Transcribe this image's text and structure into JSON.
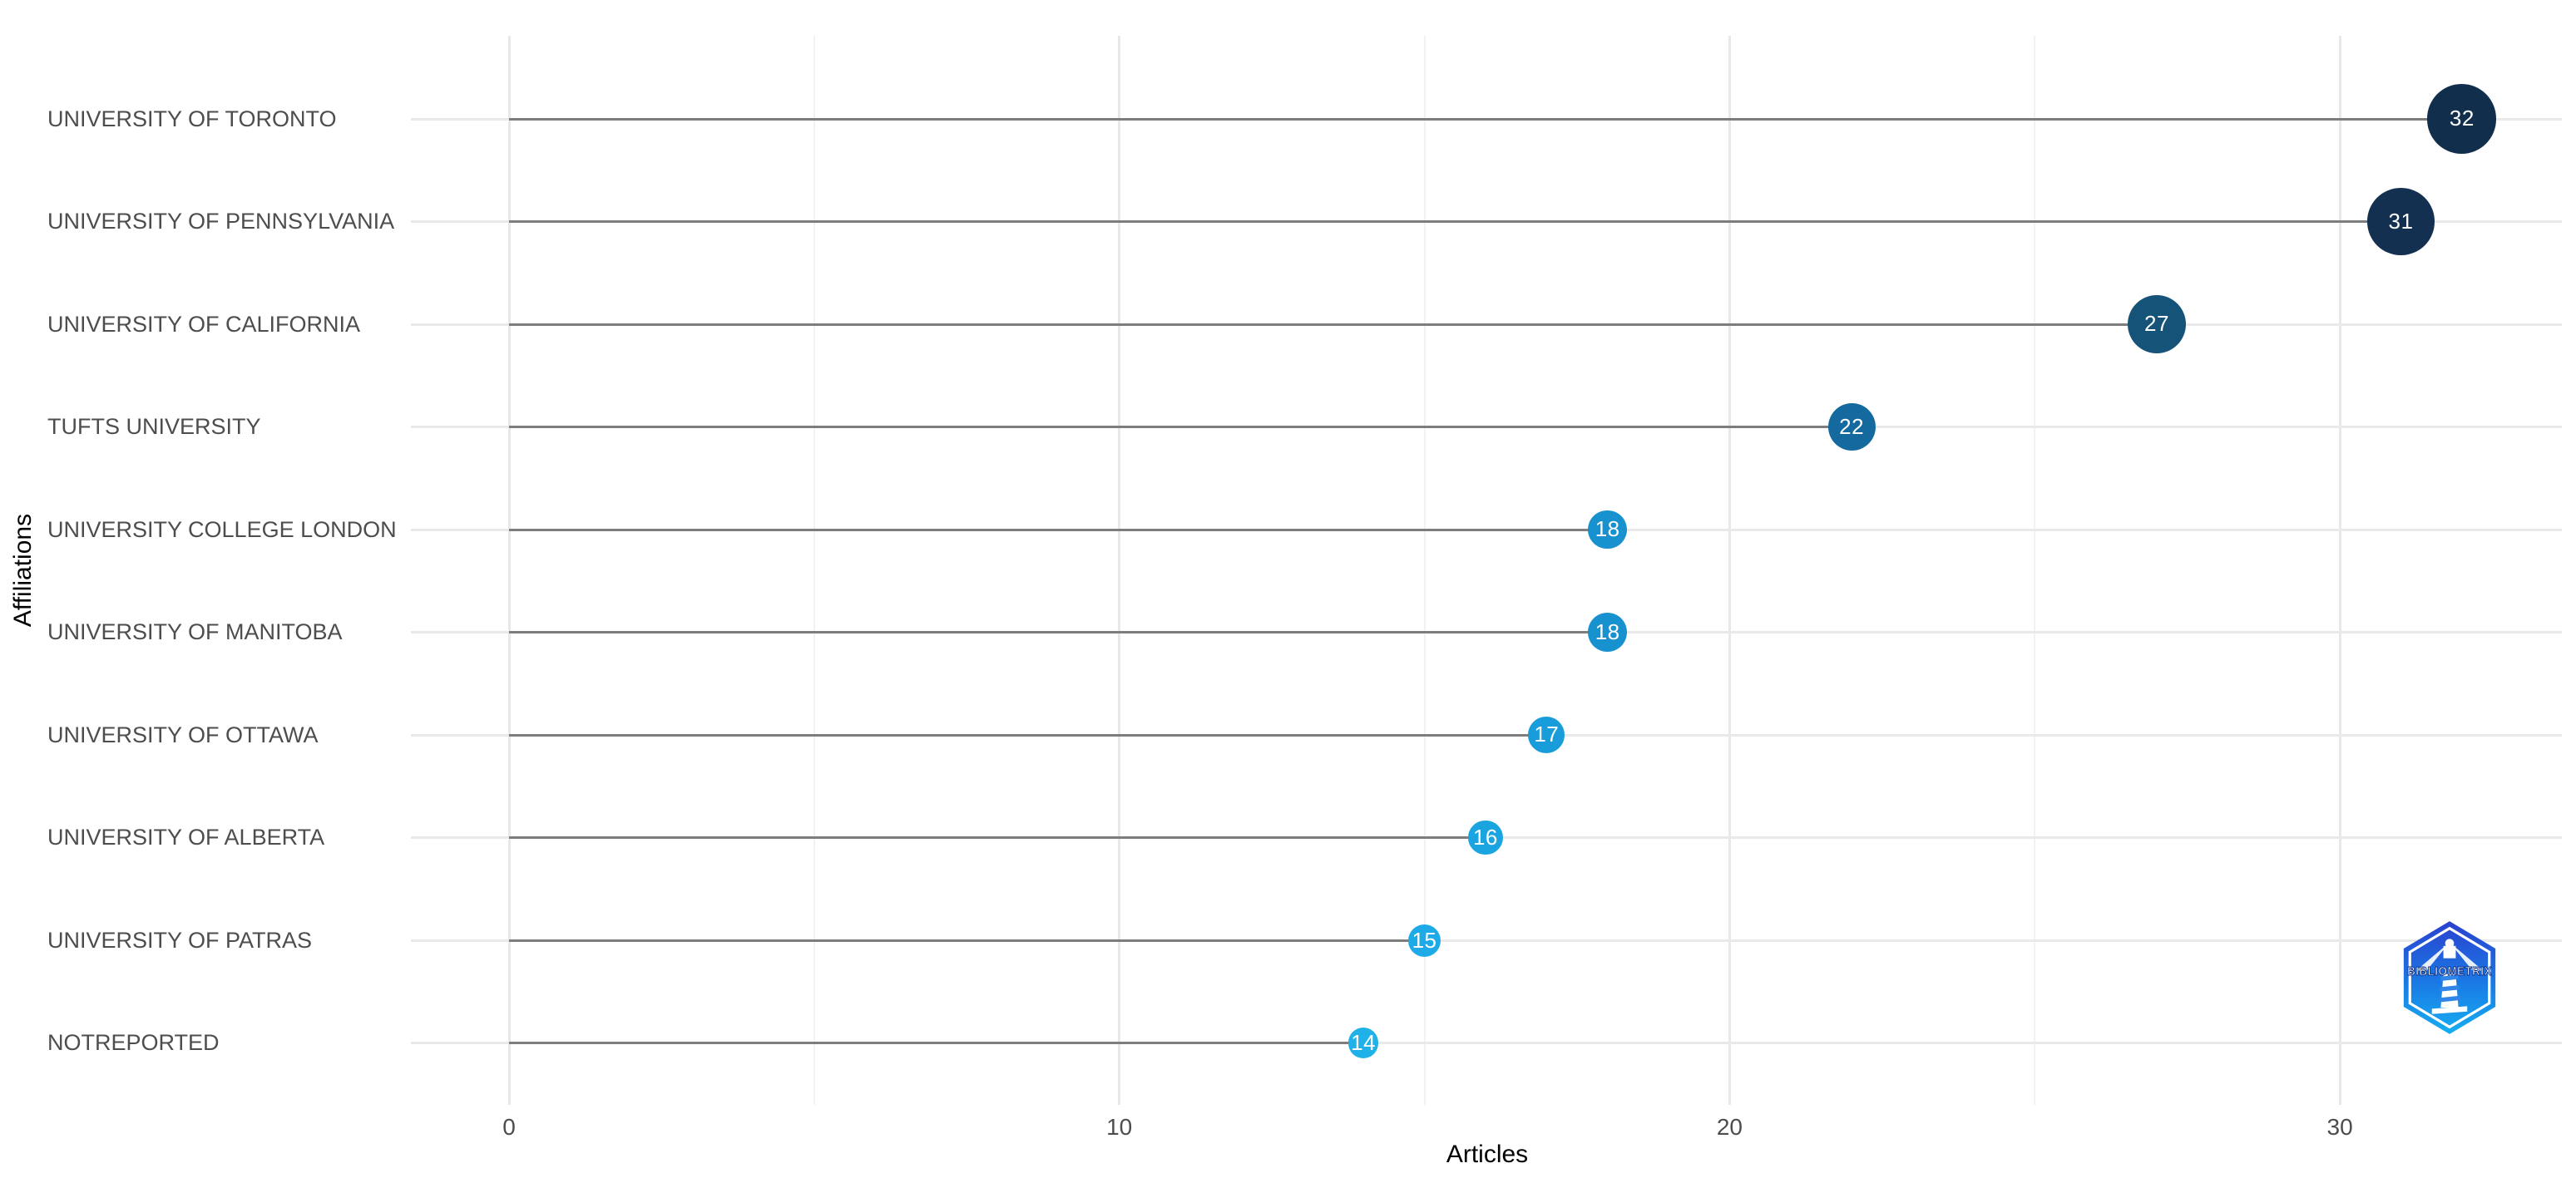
{
  "chart_data": {
    "type": "scatter",
    "variant": "lollipop",
    "orientation": "horizontal",
    "title": "",
    "xlabel": "Articles",
    "ylabel": "Affiliations",
    "categories": [
      "UNIVERSITY OF TORONTO",
      "UNIVERSITY OF PENNSYLVANIA",
      "UNIVERSITY OF CALIFORNIA",
      "TUFTS UNIVERSITY",
      "UNIVERSITY COLLEGE LONDON",
      "UNIVERSITY OF MANITOBA",
      "UNIVERSITY OF OTTAWA",
      "UNIVERSITY OF ALBERTA",
      "UNIVERSITY OF PATRAS",
      "NOTREPORTED"
    ],
    "values": [
      32,
      31,
      27,
      22,
      18,
      18,
      17,
      16,
      15,
      14
    ],
    "point_colors": [
      "#122e4d",
      "#133050",
      "#165378",
      "#146a9e",
      "#1792cf",
      "#1792cf",
      "#189dda",
      "#1aa4e0",
      "#1eaae6",
      "#20b1e9"
    ],
    "point_size_note": "dot diameter scales linearly with value",
    "x_ticks": [
      0,
      10,
      20,
      30
    ],
    "x_minor_ticks": [
      5,
      15,
      25
    ],
    "xlim": [
      -1.6,
      33.6
    ],
    "grid": "horizontal row lines + vertical major/minor lines, light gray, no panel border",
    "legend": "none"
  },
  "colors": {
    "background": "#ffffff",
    "grid_major": "#e8e8e8",
    "grid_minor": "#f2f2f2",
    "row_line": "#e9e9e9",
    "stem": "#7d7d7d",
    "axis_text": "#4d4d4d",
    "axis_title": "#000000",
    "dot_label": "#ffffff",
    "logo_top": "#2b41d0",
    "logo_bottom": "#16aef2"
  },
  "branding": {
    "logo_text": "BIBLIOMETRIX"
  }
}
